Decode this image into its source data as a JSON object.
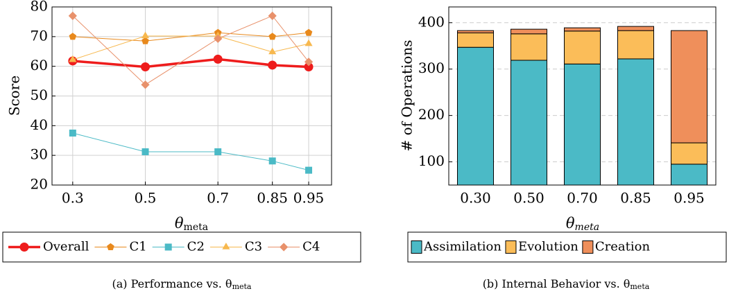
{
  "chart_data": [
    {
      "type": "line",
      "ylabel": "Score",
      "xlabel": "θ",
      "xlabel_subscript": "meta",
      "caption": "(a) Performance vs. θ",
      "caption_subscript": "meta",
      "x": [
        0.3,
        0.5,
        0.7,
        0.85,
        0.95
      ],
      "xlim": [
        0.243,
        1.013
      ],
      "xticks": [
        0.3,
        0.5,
        0.7,
        0.85,
        0.95
      ],
      "ylim": [
        20,
        80
      ],
      "yticks": [
        20,
        30,
        40,
        50,
        60,
        70,
        80
      ],
      "grid": true,
      "legend": "below",
      "series": [
        {
          "name": "Overall",
          "color": "#ee1c1c",
          "marker": "circle",
          "values": [
            61.8,
            59.8,
            62.4,
            60.4,
            59.8
          ]
        },
        {
          "name": "C1",
          "color": "#e8891c",
          "marker": "pentagon",
          "values": [
            70,
            68.5,
            71.3,
            70,
            71.3
          ]
        },
        {
          "name": "C2",
          "color": "#4bbac6",
          "marker": "square",
          "values": [
            37.5,
            31.2,
            31.2,
            28.1,
            25
          ]
        },
        {
          "name": "C3",
          "color": "#f7b84e",
          "marker": "triangle",
          "values": [
            62.2,
            70.2,
            70.2,
            64.8,
            67.6
          ]
        },
        {
          "name": "C4",
          "color": "#e8916b",
          "marker": "diamond",
          "values": [
            77,
            53.8,
            69.3,
            77,
            61.5
          ]
        }
      ]
    },
    {
      "type": "stacked-bar",
      "ylabel": "# of Operations",
      "xlabel": "θ",
      "xlabel_subscript": "meta",
      "caption": "(b) Internal Behavior vs. θ",
      "caption_subscript": "meta",
      "categories": [
        "0.30",
        "0.50",
        "0.70",
        "0.85",
        "0.95"
      ],
      "ylim": [
        50,
        434
      ],
      "yticks": [
        100,
        200,
        300,
        400
      ],
      "grid": true,
      "legend": "below",
      "series": [
        {
          "name": "Assimilation",
          "color": "#4bbac6",
          "values": [
            347,
            319,
            311,
            322,
            95
          ]
        },
        {
          "name": "Evolution",
          "color": "#fbbd59",
          "values": [
            31,
            57,
            71,
            61,
            46
          ]
        },
        {
          "name": "Creation",
          "color": "#ef8f5b",
          "values": [
            5,
            10,
            7,
            9,
            242
          ]
        }
      ]
    }
  ]
}
